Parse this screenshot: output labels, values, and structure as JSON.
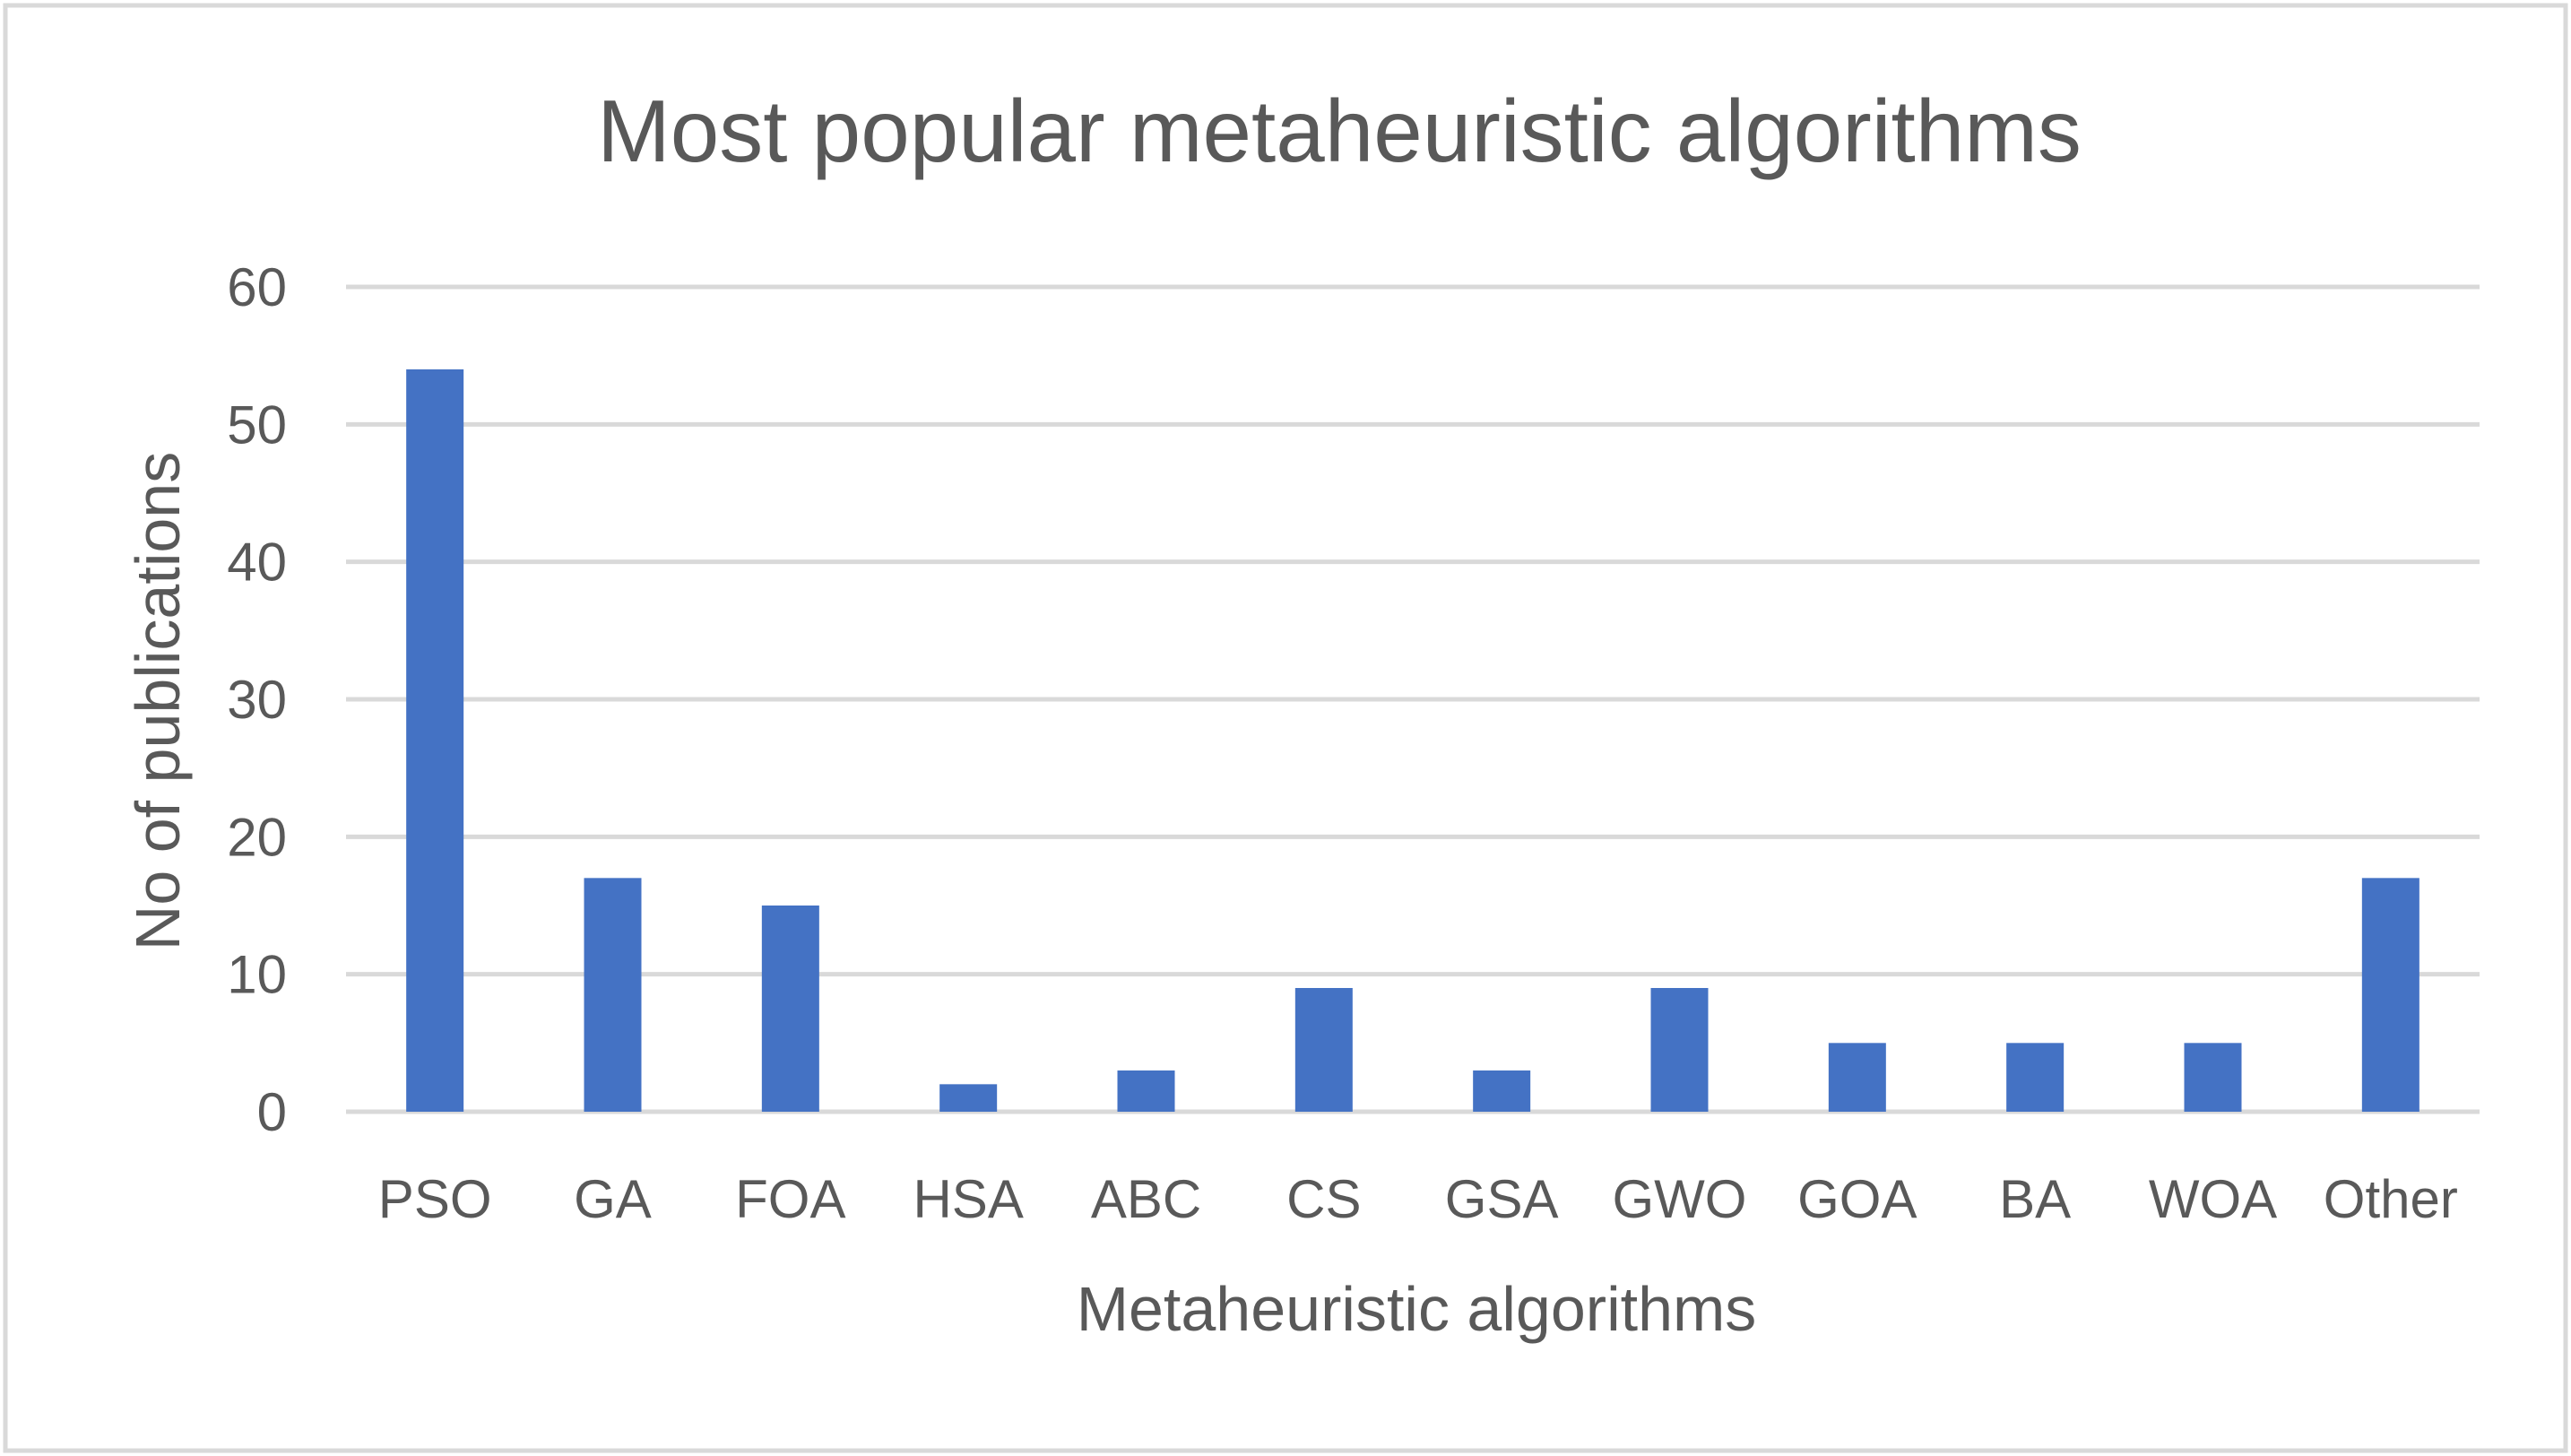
{
  "chart_data": {
    "type": "bar",
    "title": "Most popular metaheuristic algorithms",
    "xlabel": "Metaheuristic algorithms",
    "ylabel": "No of publications",
    "categories": [
      "PSO",
      "GA",
      "FOA",
      "HSA",
      "ABC",
      "CS",
      "GSA",
      "GWO",
      "GOA",
      "BA",
      "WOA",
      "Other"
    ],
    "series": [
      {
        "name": "No of publications",
        "values": [
          54,
          17,
          15,
          2,
          3,
          9,
          3,
          9,
          5,
          5,
          5,
          17
        ]
      }
    ],
    "ylim": [
      0,
      60
    ],
    "yticks": [
      "0",
      "10",
      "20",
      "30",
      "40",
      "50",
      "60"
    ],
    "grid": true,
    "legend": "none",
    "colors": {
      "bar": "#4472c4",
      "grid": "#d9d9d9",
      "text": "#595959",
      "border": "#d9d9d9"
    }
  }
}
